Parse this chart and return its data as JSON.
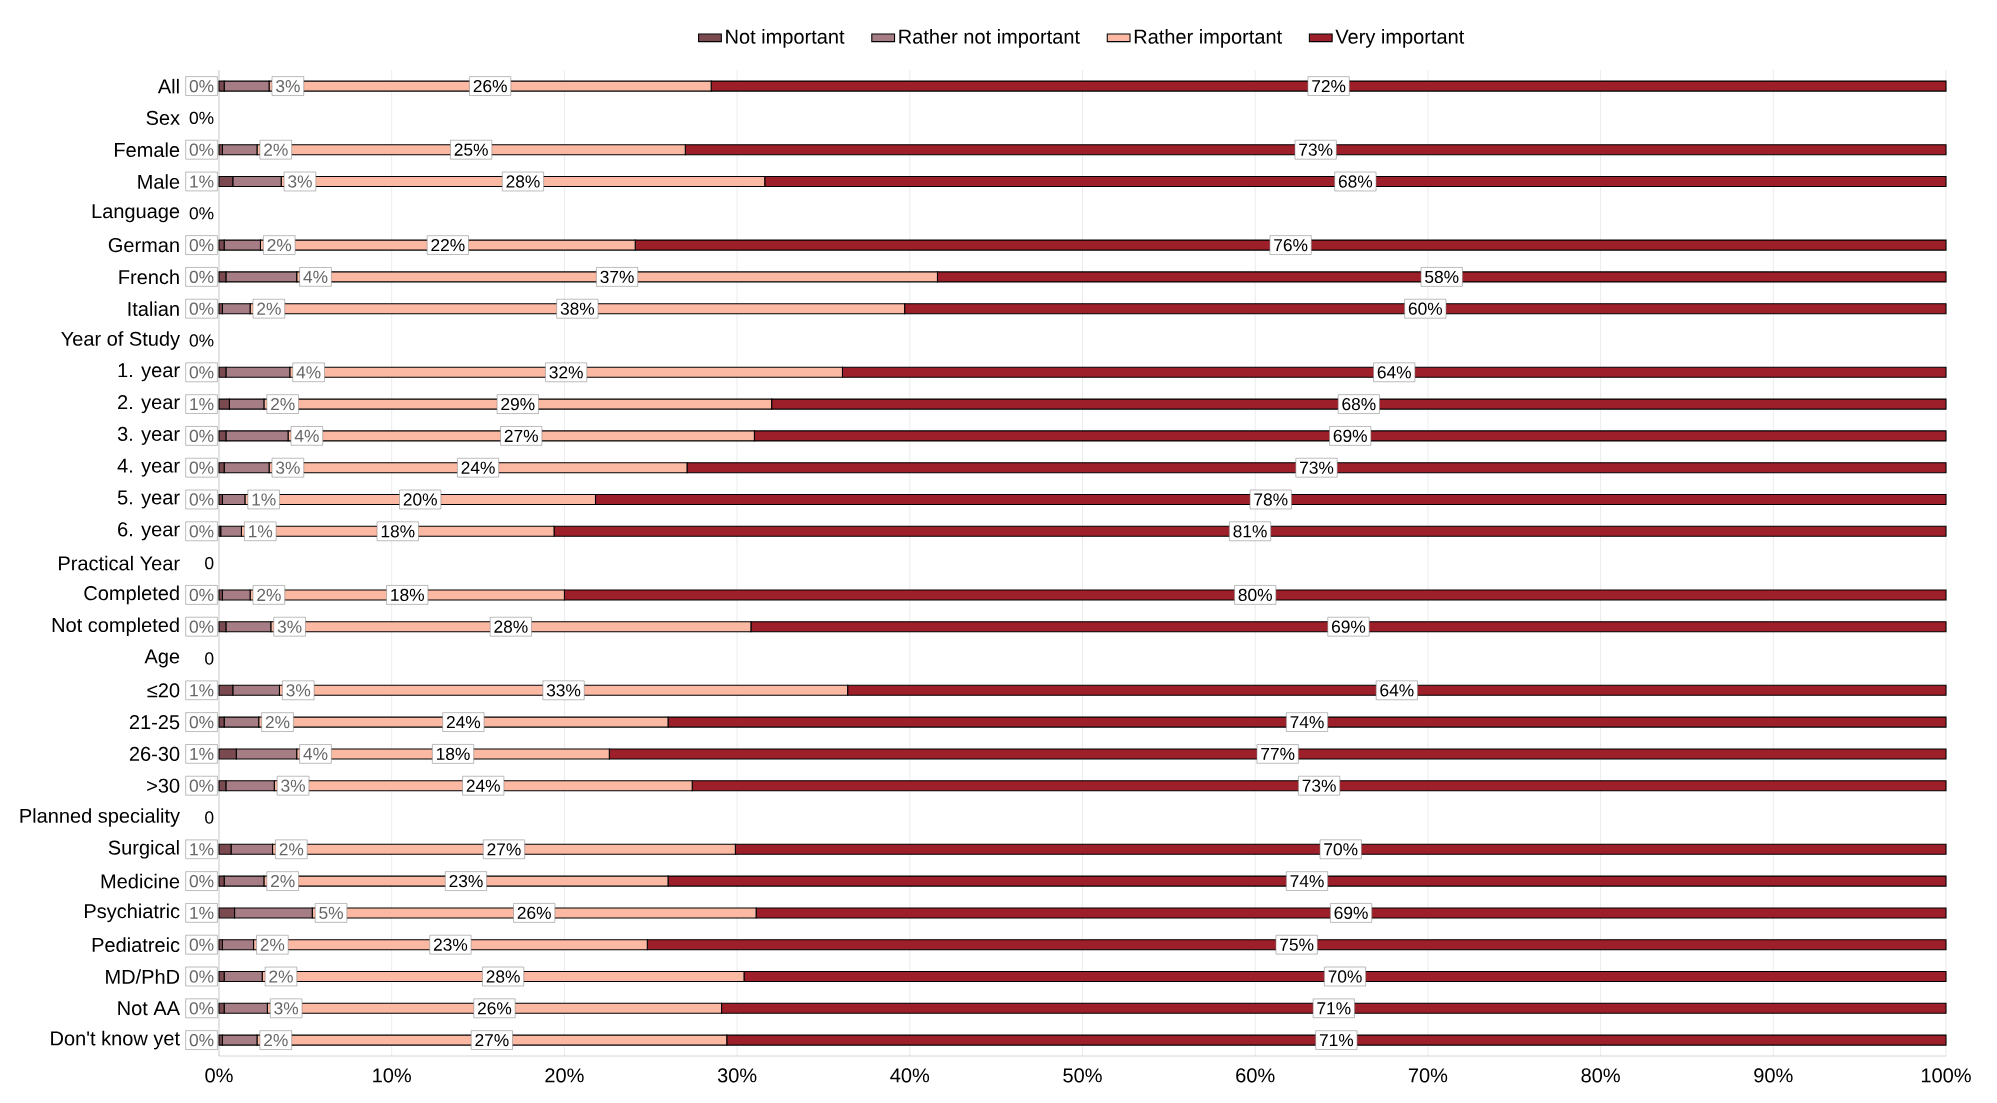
{
  "chart_data": {
    "type": "bar",
    "orientation": "horizontal",
    "stacked": true,
    "legend": "top",
    "grid": "x",
    "categories": [
      "All",
      "Sex",
      "Female",
      "Male",
      "Language",
      "German",
      "French",
      "Italian",
      "Year of Study",
      "1. year",
      "2. year",
      "3. year",
      "4. year",
      "5. year",
      "6. year",
      "Practical Year",
      "Completed",
      "Not completed",
      "Age",
      "≤20",
      "21-25",
      "26-30",
      ">30",
      "Planned speciality",
      "Surgical",
      "Medicine",
      "Psychiatric",
      "Pediatreic",
      "MD/PhD",
      "Not AA",
      "Don't know yet"
    ],
    "xlim": [
      0,
      100
    ],
    "xticks": [
      {
        "value": 0,
        "label": "0%"
      },
      {
        "value": 10,
        "label": "10%"
      },
      {
        "value": 20,
        "label": "20%"
      },
      {
        "value": 30,
        "label": "30%"
      },
      {
        "value": 40,
        "label": "40%"
      },
      {
        "value": 50,
        "label": "50%"
      },
      {
        "value": 60,
        "label": "60%"
      },
      {
        "value": 70,
        "label": "70%"
      },
      {
        "value": 80,
        "label": "80%"
      },
      {
        "value": 90,
        "label": "90%"
      },
      {
        "value": 100,
        "label": "100%"
      }
    ],
    "series": [
      {
        "name": "Not important",
        "color": "#7b4a50",
        "values": [
          0.3,
          0,
          0.2,
          0.8,
          0,
          0.3,
          0.4,
          0.2,
          0,
          0.4,
          0.6,
          0.4,
          0.3,
          0.2,
          0.1,
          0,
          0.2,
          0.4,
          0,
          0.8,
          0.3,
          1.0,
          0.4,
          0,
          0.7,
          0.3,
          0.9,
          0.2,
          0.3,
          0.3,
          0.2
        ],
        "value_labels": [
          "0%",
          "0%",
          "0%",
          "1%",
          "0%",
          "0%",
          "0%",
          "0%",
          "0%",
          "0%",
          "1%",
          "0%",
          "0%",
          "0%",
          "0%",
          "0",
          "0%",
          "0%",
          "0",
          "1%",
          "0%",
          "1%",
          "0%",
          "0",
          "1%",
          "0%",
          "1%",
          "0%",
          "0%",
          "0%",
          "0%"
        ]
      },
      {
        "name": "Rather not important",
        "color": "#a67c85",
        "values": [
          2.6,
          null,
          2.0,
          2.8,
          null,
          2.1,
          4.1,
          1.6,
          null,
          3.7,
          2.0,
          3.6,
          2.6,
          1.3,
          1.2,
          null,
          1.6,
          2.6,
          null,
          2.7,
          2.0,
          3.5,
          2.8,
          null,
          2.4,
          2.3,
          4.5,
          1.8,
          2.2,
          2.5,
          2.0
        ],
        "value_labels": [
          "3%",
          null,
          "2%",
          "3%",
          null,
          "2%",
          "4%",
          "2%",
          null,
          "4%",
          "2%",
          "4%",
          "3%",
          "1%",
          "1%",
          null,
          "2%",
          "3%",
          null,
          "3%",
          "2%",
          "4%",
          "3%",
          null,
          "2%",
          "2%",
          "5%",
          "2%",
          "2%",
          "3%",
          "2%"
        ]
      },
      {
        "name": "Rather important",
        "color": "#fbb9a4",
        "values": [
          25.6,
          null,
          24.8,
          28.0,
          null,
          21.7,
          37.1,
          37.9,
          null,
          32.0,
          29.4,
          27.0,
          24.2,
          20.3,
          18.1,
          null,
          18.2,
          27.8,
          null,
          32.9,
          23.7,
          18.1,
          24.2,
          null,
          26.8,
          23.4,
          25.7,
          22.8,
          27.9,
          26.3,
          27.2
        ],
        "value_labels": [
          "26%",
          null,
          "25%",
          "28%",
          null,
          "22%",
          "37%",
          "38%",
          null,
          "32%",
          "29%",
          "27%",
          "24%",
          "20%",
          "18%",
          null,
          "18%",
          "28%",
          null,
          "33%",
          "24%",
          "18%",
          "24%",
          null,
          "27%",
          "23%",
          "26%",
          "23%",
          "28%",
          "26%",
          "27%"
        ]
      },
      {
        "name": "Very important",
        "color": "#9c1f2a",
        "values": [
          71.5,
          null,
          73.0,
          68.4,
          null,
          75.9,
          58.4,
          60.3,
          null,
          63.9,
          68.0,
          69.0,
          72.9,
          78.2,
          80.6,
          null,
          80.0,
          69.2,
          null,
          63.6,
          74.0,
          77.4,
          72.6,
          null,
          70.1,
          74.0,
          68.9,
          75.2,
          69.6,
          70.9,
          70.6
        ],
        "value_labels": [
          "72%",
          null,
          "73%",
          "68%",
          null,
          "76%",
          "58%",
          "60%",
          null,
          "64%",
          "68%",
          "69%",
          "73%",
          "78%",
          "81%",
          null,
          "80%",
          "69%",
          null,
          "64%",
          "74%",
          "77%",
          "73%",
          null,
          "70%",
          "74%",
          "69%",
          "75%",
          "70%",
          "71%",
          "71%"
        ]
      }
    ]
  }
}
